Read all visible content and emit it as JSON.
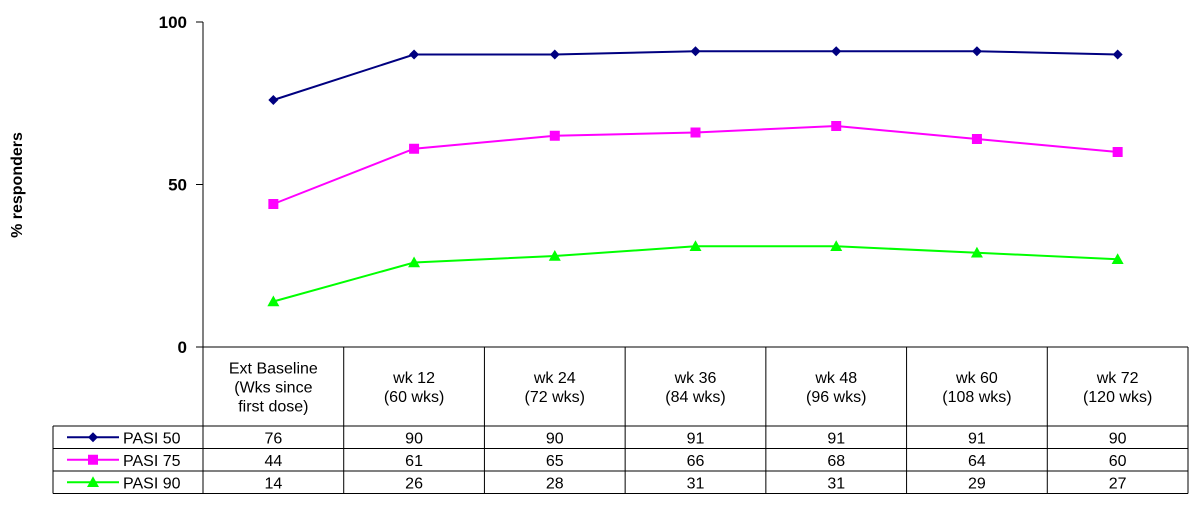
{
  "chart_data": {
    "type": "line",
    "title": "",
    "xlabel": "",
    "ylabel": "% responders",
    "ylim": [
      0,
      100
    ],
    "yticks": [
      0,
      50,
      100
    ],
    "grid": false,
    "legend": "data-table-left",
    "categories": [
      [
        "Ext Baseline",
        "(Wks since",
        "first dose)"
      ],
      [
        "wk 12",
        "(60 wks)"
      ],
      [
        "wk 24",
        "(72 wks)"
      ],
      [
        "wk 36",
        "(84 wks)"
      ],
      [
        "wk 48",
        "(96 wks)"
      ],
      [
        "wk 60",
        "(108 wks)"
      ],
      [
        "wk 72",
        "(120 wks)"
      ]
    ],
    "series": [
      {
        "name": "PASI 50",
        "values": [
          76,
          90,
          90,
          91,
          91,
          91,
          90
        ],
        "color": "#000080",
        "marker": "diamond"
      },
      {
        "name": "PASI 75",
        "values": [
          44,
          61,
          65,
          66,
          68,
          64,
          60
        ],
        "color": "#ff00ff",
        "marker": "square"
      },
      {
        "name": "PASI 90",
        "values": [
          14,
          26,
          28,
          31,
          31,
          29,
          27
        ],
        "color": "#00ff00",
        "marker": "triangle"
      }
    ]
  }
}
